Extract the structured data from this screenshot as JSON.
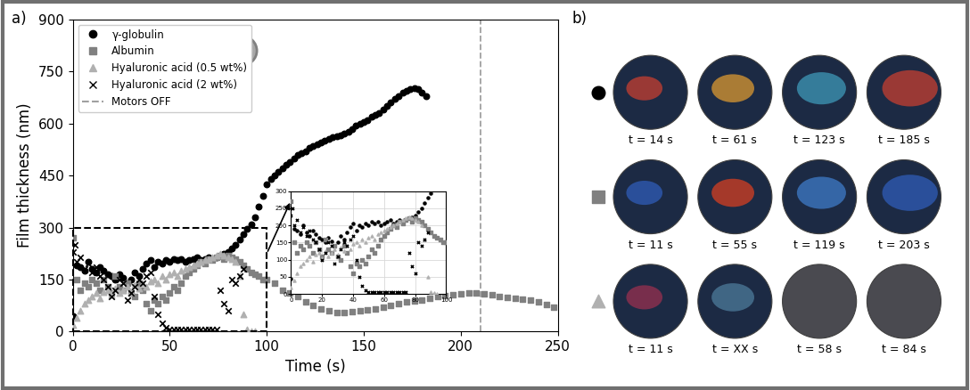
{
  "chart_data": {
    "type": "scatter",
    "panel_label": "a)",
    "x_label": "Time (s)",
    "y_label": "Film thickness (nm)",
    "xlim": [
      0,
      250
    ],
    "ylim": [
      0,
      900
    ],
    "xticks": [
      0,
      50,
      100,
      150,
      200,
      250
    ],
    "yticks": [
      0,
      150,
      300,
      450,
      600,
      750,
      900
    ],
    "legend": "upper left",
    "series": [
      {
        "name": "γ-globulin",
        "color": "#000000",
        "marker": "circle",
        "x": [
          0,
          2,
          4,
          6,
          8,
          10,
          12,
          14,
          16,
          18,
          20,
          22,
          24,
          26,
          28,
          30,
          32,
          34,
          36,
          38,
          40,
          42,
          44,
          46,
          48,
          50,
          52,
          54,
          56,
          58,
          60,
          62,
          64,
          66,
          68,
          70,
          72,
          74,
          76,
          78,
          80,
          82,
          84,
          86,
          88,
          90,
          92,
          94,
          96,
          98,
          100,
          102,
          104,
          106,
          108,
          110,
          112,
          114,
          116,
          118,
          120,
          122,
          124,
          126,
          128,
          130,
          132,
          134,
          136,
          138,
          140,
          142,
          144,
          146,
          148,
          150,
          152,
          154,
          156,
          158,
          160,
          162,
          164,
          166,
          168,
          170,
          172,
          174,
          176,
          178,
          180,
          182
        ],
        "values": [
          45,
          190,
          185,
          175,
          200,
          180,
          170,
          185,
          175,
          165,
          160,
          150,
          165,
          155,
          140,
          150,
          170,
          160,
          180,
          195,
          205,
          185,
          200,
          195,
          205,
          200,
          210,
          205,
          210,
          200,
          205,
          210,
          215,
          205,
          210,
          215,
          210,
          215,
          220,
          225,
          230,
          240,
          250,
          265,
          280,
          295,
          310,
          330,
          360,
          390,
          425,
          440,
          450,
          460,
          470,
          480,
          490,
          500,
          510,
          515,
          520,
          530,
          535,
          540,
          545,
          550,
          555,
          560,
          562,
          565,
          570,
          575,
          585,
          595,
          600,
          605,
          610,
          620,
          625,
          630,
          640,
          650,
          660,
          670,
          680,
          690,
          695,
          700,
          702,
          700,
          690,
          680
        ]
      },
      {
        "name": "Albumin",
        "color": "#808080",
        "marker": "square",
        "x": [
          0,
          2,
          4,
          6,
          8,
          10,
          12,
          14,
          16,
          18,
          20,
          22,
          24,
          26,
          28,
          30,
          32,
          34,
          36,
          38,
          40,
          42,
          44,
          46,
          48,
          50,
          52,
          54,
          56,
          58,
          60,
          62,
          64,
          66,
          68,
          70,
          72,
          74,
          76,
          78,
          80,
          82,
          84,
          86,
          88,
          90,
          92,
          94,
          96,
          98,
          100,
          104,
          108,
          112,
          116,
          120,
          124,
          128,
          132,
          136,
          140,
          144,
          148,
          152,
          156,
          160,
          164,
          168,
          172,
          176,
          180,
          184,
          188,
          192,
          196,
          200,
          204,
          208,
          212,
          216,
          220,
          224,
          228,
          232,
          236,
          240,
          244,
          248
        ],
        "values": [
          270,
          150,
          120,
          140,
          130,
          150,
          140,
          120,
          150,
          130,
          110,
          160,
          130,
          120,
          140,
          110,
          100,
          140,
          120,
          80,
          60,
          90,
          80,
          100,
          90,
          110,
          130,
          120,
          140,
          160,
          170,
          180,
          190,
          200,
          195,
          210,
          205,
          215,
          220,
          210,
          220,
          215,
          210,
          200,
          190,
          180,
          170,
          165,
          160,
          150,
          150,
          140,
          120,
          110,
          100,
          85,
          75,
          65,
          60,
          55,
          55,
          58,
          60,
          62,
          65,
          70,
          75,
          80,
          85,
          88,
          90,
          95,
          100,
          103,
          105,
          108,
          110,
          110,
          108,
          105,
          100,
          98,
          95,
          92,
          90,
          85,
          78,
          70
        ]
      },
      {
        "name": "Hyaluronic acid (0.5 wt%)",
        "color": "#b0b0b0",
        "marker": "triangle",
        "x": [
          0,
          2,
          4,
          6,
          8,
          10,
          12,
          14,
          16,
          18,
          20,
          22,
          24,
          26,
          28,
          30,
          32,
          34,
          36,
          38,
          40,
          42,
          44,
          46,
          48,
          50,
          52,
          54,
          56,
          58,
          60,
          62,
          64,
          66,
          68,
          70,
          72,
          74,
          76,
          78,
          80,
          82,
          84,
          86,
          88,
          90,
          92,
          94
        ],
        "values": [
          20,
          40,
          60,
          80,
          90,
          100,
          110,
          95,
          115,
          120,
          105,
          125,
          110,
          120,
          130,
          115,
          135,
          125,
          140,
          130,
          145,
          150,
          140,
          160,
          150,
          165,
          170,
          160,
          175,
          180,
          185,
          190,
          195,
          200,
          205,
          210,
          215,
          220,
          225,
          220,
          215,
          210,
          200,
          160,
          50,
          5,
          2,
          0
        ]
      },
      {
        "name": "Hyaluronic acid (2 wt%)",
        "color": "#000000",
        "marker": "x",
        "x": [
          0,
          1,
          2,
          4,
          6,
          8,
          10,
          12,
          14,
          16,
          18,
          20,
          22,
          24,
          26,
          28,
          30,
          32,
          34,
          36,
          38,
          40,
          42,
          44,
          46,
          48,
          50,
          52,
          54,
          56,
          58,
          60,
          62,
          64,
          66,
          68,
          70,
          72,
          74,
          76,
          78,
          80,
          82,
          84,
          86,
          88
        ],
        "values": [
          230,
          250,
          200,
          215,
          180,
          195,
          170,
          185,
          160,
          150,
          130,
          100,
          120,
          150,
          140,
          90,
          110,
          130,
          150,
          140,
          160,
          170,
          100,
          50,
          25,
          10,
          5,
          5,
          5,
          5,
          5,
          5,
          5,
          5,
          5,
          5,
          5,
          5,
          5,
          120,
          80,
          60,
          150,
          140,
          160,
          180
        ]
      }
    ],
    "vlines": [
      {
        "name": "Motors OFF",
        "x": 210,
        "color": "#a0a0a0",
        "line_style": "dashed"
      }
    ],
    "inset": {
      "xlim": [
        0,
        100
      ],
      "ylim": [
        0,
        300
      ],
      "xticks": [
        0,
        20,
        40,
        60,
        80,
        100
      ],
      "yticks": [
        0,
        50,
        100,
        150,
        200,
        250,
        300
      ],
      "grid": true
    }
  },
  "panel_b": {
    "panel_label": "b)",
    "rows": [
      {
        "marker": "circle",
        "color": "#000000",
        "times": [
          "t = 14 s",
          "t = 61 s",
          "t = 123 s",
          "t = 185 s"
        ]
      },
      {
        "marker": "square",
        "color": "#808080",
        "times": [
          "t = 11 s",
          "t = 55 s",
          "t = 119 s",
          "t = 203 s"
        ]
      },
      {
        "marker": "triangle",
        "color": "#b0b0b0",
        "times": [
          "t = 11 s",
          "t = XX s",
          "t = 58 s",
          "t = 84 s"
        ]
      }
    ]
  }
}
